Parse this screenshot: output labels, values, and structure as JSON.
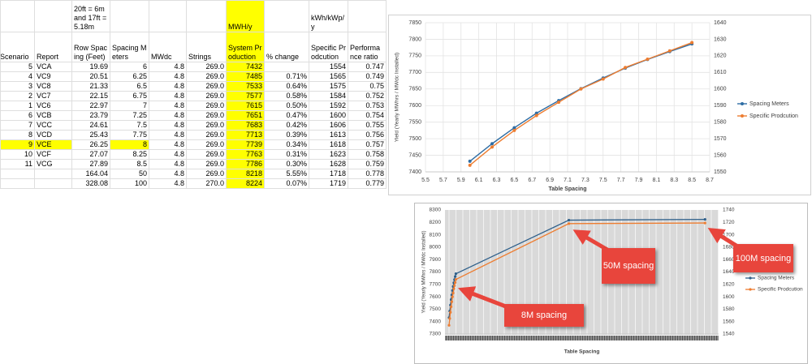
{
  "table": {
    "header_notes": [
      null,
      null,
      "20ft = 6m and 17ft = 5.18m",
      null,
      null,
      null,
      "MWH/y",
      null,
      "kWh/kWp/y",
      null
    ],
    "columns": [
      "Scenario",
      "Report",
      "Row Spacing (Feet)",
      "Spacing Meters",
      "MWdc",
      "Strings",
      "System Production",
      "% change",
      "Specific Prodcution",
      "Performance ratio"
    ],
    "rows": [
      [
        "5",
        "VCA",
        "19.69",
        "6",
        "4.8",
        "269.0",
        "7432",
        null,
        "1554",
        "0.747"
      ],
      [
        "4",
        "VC9",
        "20.51",
        "6.25",
        "4.8",
        "269.0",
        "7485",
        "0.71%",
        "1565",
        "0.749"
      ],
      [
        "3",
        "VC8",
        "21.33",
        "6.5",
        "4.8",
        "269.0",
        "7533",
        "0.64%",
        "1575",
        "0.75"
      ],
      [
        "2",
        "VC7",
        "22.15",
        "6.75",
        "4.8",
        "269.0",
        "7577",
        "0.58%",
        "1584",
        "0.752"
      ],
      [
        "1",
        "VC6",
        "22.97",
        "7",
        "4.8",
        "269.0",
        "7615",
        "0.50%",
        "1592",
        "0.753"
      ],
      [
        "6",
        "VCB",
        "23.79",
        "7.25",
        "4.8",
        "269.0",
        "7651",
        "0.47%",
        "1600",
        "0.754"
      ],
      [
        "7",
        "VCC",
        "24.61",
        "7.5",
        "4.8",
        "269.0",
        "7683",
        "0.42%",
        "1606",
        "0.755"
      ],
      [
        "8",
        "VCD",
        "25.43",
        "7.75",
        "4.8",
        "269.0",
        "7713",
        "0.39%",
        "1613",
        "0.756"
      ],
      [
        "9",
        "VCE",
        "26.25",
        "8",
        "4.8",
        "269.0",
        "7739",
        "0.34%",
        "1618",
        "0.757"
      ],
      [
        "10",
        "VCF",
        "27.07",
        "8.25",
        "4.8",
        "269.0",
        "7763",
        "0.31%",
        "1623",
        "0.758"
      ],
      [
        "11",
        "VCG",
        "27.89",
        "8.5",
        "4.8",
        "269.0",
        "7786",
        "0.30%",
        "1628",
        "0.759"
      ],
      [
        null,
        null,
        "164.04",
        "50",
        "4.8",
        "269.0",
        "8218",
        "5.55%",
        "1718",
        "0.778"
      ],
      [
        null,
        null,
        "328.08",
        "100",
        "4.8",
        "270.0",
        "8224",
        "0.07%",
        "1719",
        "0.779"
      ]
    ]
  },
  "chart_data": [
    {
      "type": "line",
      "x_label": "Table Spacing",
      "y_label": "Yield (Yearly MWhrs / MWdc Installed)",
      "x": [
        6,
        6.25,
        6.5,
        6.75,
        7,
        7.25,
        7.5,
        7.75,
        8,
        8.25,
        8.5
      ],
      "series": [
        {
          "name": "Spacing Meters",
          "color": "#2e6da4",
          "values": [
            7432,
            7485,
            7533,
            7577,
            7615,
            7651,
            7683,
            7713,
            7739,
            7763,
            7786
          ]
        },
        {
          "name": "Specific Prodcution",
          "color": "#ed7d31",
          "axis": "y2",
          "values": [
            1554,
            1565,
            1575,
            1584,
            1592,
            1600,
            1606,
            1613,
            1618,
            1623,
            1628
          ]
        }
      ],
      "xlim": [
        5.5,
        8.7
      ],
      "xticks": [
        5.5,
        5.7,
        5.9,
        6.1,
        6.3,
        6.5,
        6.7,
        6.9,
        7.1,
        7.3,
        7.5,
        7.7,
        7.9,
        8.1,
        8.3,
        8.5,
        8.7
      ],
      "ylim": [
        7400,
        7850
      ],
      "yticks": [
        7400,
        7450,
        7500,
        7550,
        7600,
        7650,
        7700,
        7750,
        7800,
        7850
      ],
      "y2lim": [
        1550,
        1640
      ],
      "y2ticks": [
        1550,
        1560,
        1570,
        1580,
        1590,
        1600,
        1610,
        1620,
        1630,
        1640
      ],
      "grid": true,
      "legend": "right"
    },
    {
      "type": "line",
      "x_label": "Table Spacing",
      "y_label": "Yield (Yearly MWhrs / MWdc Installed)",
      "x": [
        6,
        6.25,
        6.5,
        6.75,
        7,
        7.25,
        7.5,
        7.75,
        8,
        8.25,
        8.5,
        50,
        100
      ],
      "series": [
        {
          "name": "Spacing Meters",
          "color": "#2e5f8a",
          "values": [
            7432,
            7485,
            7533,
            7577,
            7615,
            7651,
            7683,
            7713,
            7739,
            7763,
            7786,
            8218,
            8224
          ]
        },
        {
          "name": "Specific Prodcution",
          "color": "#ed7d31",
          "axis": "y2",
          "values": [
            1554,
            1565,
            1575,
            1584,
            1592,
            1600,
            1606,
            1613,
            1618,
            1623,
            1628,
            1718,
            1719
          ]
        }
      ],
      "xlim": [
        4.5,
        105
      ],
      "ylim": [
        7300,
        8300
      ],
      "yticks": [
        7300,
        7400,
        7500,
        7600,
        7700,
        7800,
        7900,
        8000,
        8100,
        8200,
        8300
      ],
      "y2lim": [
        1540,
        1740
      ],
      "y2ticks": [
        1540,
        1560,
        1580,
        1600,
        1620,
        1640,
        1660,
        1680,
        1700,
        1720,
        1740
      ],
      "grid": false,
      "legend": "right",
      "annotations": [
        "50M spacing",
        "100M spacing",
        "8M spacing"
      ]
    }
  ]
}
